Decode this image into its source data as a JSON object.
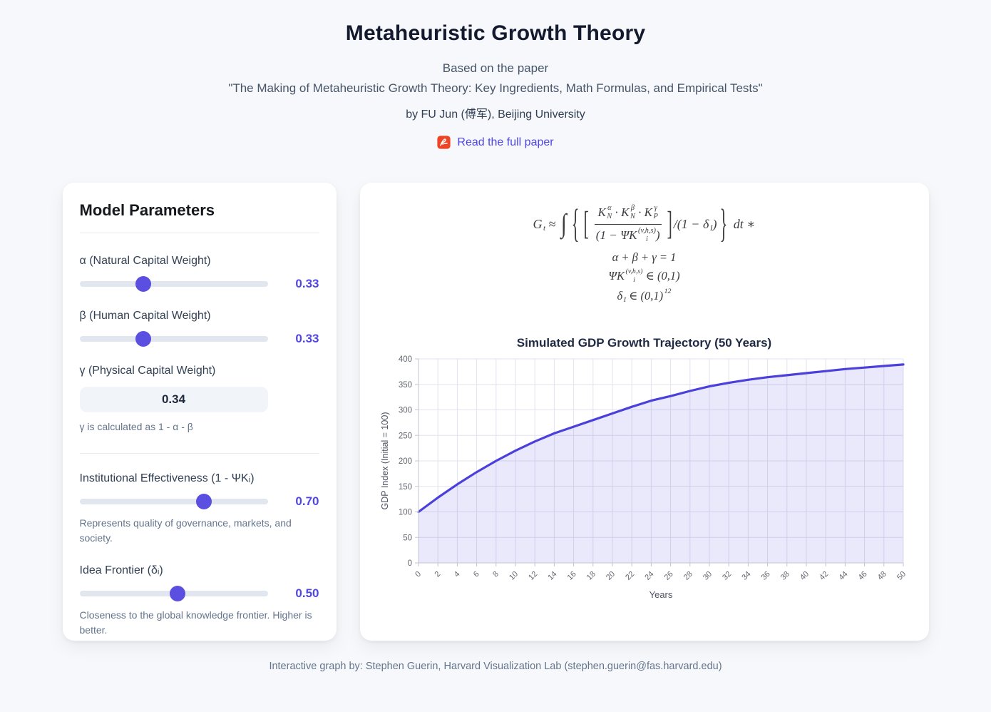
{
  "header": {
    "title": "Metaheuristic Growth Theory",
    "subtitle_line1": "Based on the paper",
    "subtitle_line2": "\"The Making of Metaheuristic Growth Theory: Key Ingredients, Math Formulas, and Empirical Tests\"",
    "author_line": "by FU Jun (傅军), Beijing University",
    "paper_link": {
      "label": "Read the full paper",
      "icon": "pdf-icon",
      "icon_color": "#ee4423"
    }
  },
  "parameters_panel": {
    "title": "Model Parameters",
    "controls": [
      {
        "type": "slider",
        "label": "α (Natural Capital Weight)",
        "value": "0.33",
        "thumb_pct": 34
      },
      {
        "type": "slider",
        "label": "β (Human Capital Weight)",
        "value": "0.33",
        "thumb_pct": 34
      },
      {
        "type": "readonly",
        "label": "γ (Physical Capital Weight)",
        "value": "0.34",
        "note": "γ is calculated as 1 - α - β"
      },
      {
        "type": "divider"
      },
      {
        "type": "slider",
        "label": "Institutional Effectiveness (1 - ΨKᵢ)",
        "value": "0.70",
        "thumb_pct": 66,
        "description": "Represents quality of governance, markets, and society."
      },
      {
        "type": "slider",
        "label": "Idea Frontier (δᵢ)",
        "value": "0.50",
        "thumb_pct": 52,
        "description": "Closeness to the global knowledge frontier. Higher is better."
      }
    ]
  },
  "formula": {
    "lines": [
      {
        "name": "main-equation",
        "tokens": [
          {
            "mi": {
              "base": "G",
              "sub": "t"
            }
          },
          {
            "txt": " ≈ "
          },
          {
            "big": "∫",
            "cls": "f-int"
          },
          {
            "big": "{",
            "cls": "f-brace"
          },
          {
            "big": "[",
            "cls": "f-brack"
          },
          {
            "frac": {
              "num": [
                {
                  "mi": {
                    "base": "K",
                    "sub": "N",
                    "sup": "α"
                  }
                },
                {
                  "txt": " · "
                },
                {
                  "mi": {
                    "base": "K",
                    "sub": "N",
                    "sup": "β"
                  }
                },
                {
                  "txt": " · "
                },
                {
                  "mi": {
                    "base": "K",
                    "sub": "P",
                    "sup": "γ"
                  }
                }
              ],
              "den": [
                {
                  "txt": "(1 − "
                },
                {
                  "mi": {
                    "base": "ΨK",
                    "sub": "i",
                    "sup": "(v,h,s)"
                  }
                },
                {
                  "txt": ")"
                }
              ]
            }
          },
          {
            "big": "]",
            "cls": "f-brack"
          },
          {
            "txt": "/(1 − "
          },
          {
            "mi": {
              "base": "δ",
              "sub": "I"
            }
          },
          {
            "txt": ")"
          },
          {
            "big": "}",
            "cls": "f-brace"
          },
          {
            "txt": " dt ∗"
          }
        ]
      },
      {
        "name": "constraint-1",
        "tokens": [
          {
            "txt": "α + β + γ = 1"
          }
        ]
      },
      {
        "name": "constraint-2",
        "tokens": [
          {
            "mi": {
              "base": "ΨK",
              "sub": "i",
              "sup": "(v,h,s)"
            }
          },
          {
            "txt": " ∈ (0,1)"
          }
        ]
      },
      {
        "name": "constraint-3",
        "tokens": [
          {
            "mi": {
              "base": "δ",
              "sub": "I"
            }
          },
          {
            "txt": " ∈ (0,1)"
          },
          {
            "mi": {
              "base": "",
              "sup": "12"
            }
          }
        ]
      }
    ]
  },
  "chart_data": {
    "type": "area",
    "title": "Simulated GDP Growth Trajectory (50 Years)",
    "xlabel": "Years",
    "ylabel": "GDP Index (Initial = 100)",
    "xlim": [
      0,
      50
    ],
    "ylim": [
      0,
      400
    ],
    "x_tick_step": 2,
    "y_tick_step": 50,
    "grid": true,
    "legend": "none",
    "line_color": "#4c40dd",
    "fill_color": "rgba(91,78,224,0.13)",
    "x": [
      0,
      2,
      4,
      6,
      8,
      10,
      12,
      14,
      16,
      18,
      20,
      22,
      24,
      26,
      28,
      30,
      32,
      34,
      36,
      38,
      40,
      42,
      44,
      46,
      48,
      50
    ],
    "y": [
      100,
      128,
      154,
      178,
      200,
      220,
      238,
      254,
      267,
      280,
      293,
      306,
      318,
      327,
      337,
      346,
      353,
      359,
      364,
      368,
      372,
      376,
      380,
      383,
      386,
      389
    ]
  },
  "footer": {
    "credit": "Interactive graph by: Stephen Guerin, Harvard Visualization Lab (stephen.guerin@fas.harvard.edu)"
  },
  "colors": {
    "accent_text": "#4f46e5",
    "slider_thumb": "#5a4fe0",
    "chart_line": "#4c40dd",
    "pdf_icon": "#ee4423",
    "page_background": "#f6f8fb"
  }
}
